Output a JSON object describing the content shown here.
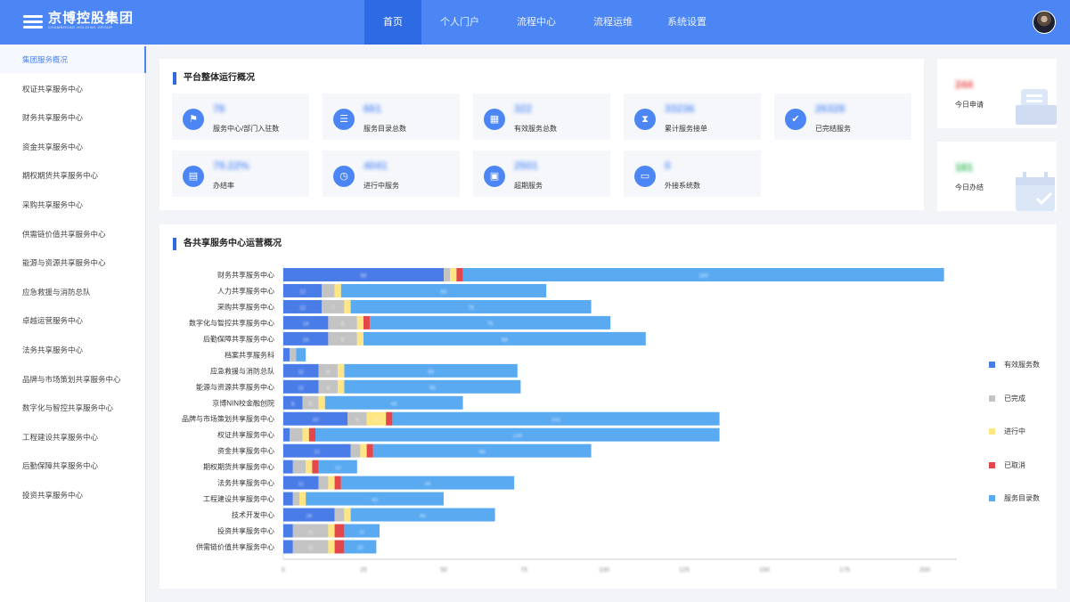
{
  "header": {
    "brand_cn": "京博控股集团",
    "brand_en": "CHAMBROAD HOLDING GROUP",
    "nav": [
      "首页",
      "个人门户",
      "流程中心",
      "流程运维",
      "系统设置"
    ],
    "active_nav": 0
  },
  "sidebar": {
    "items": [
      "集团服务概况",
      "权证共享服务中心",
      "财务共享服务中心",
      "资金共享服务中心",
      "期权期货共享服务中心",
      "采购共享服务中心",
      "供需链价值共享服务中心",
      "能源与资源共享服务中心",
      "应急救援与消防总队",
      "卓越运营服务中心",
      "法务共享服务中心",
      "品牌与市场策划共享服务中心",
      "数字化与智控共享服务中心",
      "工程建设共享服务中心",
      "后勤保障共享服务中心",
      "投资共享服务中心"
    ],
    "active": 0
  },
  "overview": {
    "title": "平台整体运行概况",
    "stats": [
      {
        "value": "78",
        "label": "服务中心/部门入驻数",
        "icon": "flag-icon"
      },
      {
        "value": "661",
        "label": "服务目录总数",
        "icon": "list-icon"
      },
      {
        "value": "322",
        "label": "有效服务总数",
        "icon": "grid-icon"
      },
      {
        "value": "33236",
        "label": "累计服务接单",
        "icon": "hourglass-icon"
      },
      {
        "value": "26328",
        "label": "已完结服务",
        "icon": "clipboard-check-icon"
      },
      {
        "value": "79.22%",
        "label": "办结率",
        "icon": "document-icon"
      },
      {
        "value": "4041",
        "label": "进行中服务",
        "icon": "clock-icon"
      },
      {
        "value": "2501",
        "label": "超期服务",
        "icon": "calendar-icon"
      },
      {
        "value": "0",
        "label": "外接系统数",
        "icon": "monitor-icon"
      }
    ]
  },
  "today": {
    "apply": {
      "value": "244",
      "label": "今日申请",
      "color": "#e8474a"
    },
    "done": {
      "value": "181",
      "label": "今日办结",
      "color": "#31b85a"
    }
  },
  "chart_section": {
    "title": "各共享服务中心运营概况"
  },
  "colors": {
    "primary": "#4c86f4",
    "nav_active": "#2f6ae5",
    "effective": "#4a7ce8",
    "completed": "#c3c3c3",
    "in_progress": "#fde683",
    "cancelled": "#e4474b",
    "catalog": "#5aaaf2"
  },
  "chart_data": {
    "type": "bar",
    "orientation": "horizontal",
    "stacked": true,
    "categories": [
      "财务共享服务中心",
      "人力共享服务中心",
      "采购共享服务中心",
      "数字化与智控共享服务中心",
      "后勤保障共享服务中心",
      "档案共享服务科",
      "应急救援与消防总队",
      "能源与资源共享服务中心",
      "京博NIN校金融创院",
      "品牌与市场策划共享服务中心",
      "权证共享服务中心",
      "资金共享服务中心",
      "期权期货共享服务中心",
      "法务共享服务中心",
      "工程建设共享服务中心",
      "技术开发中心",
      "投资共享服务中心",
      "供需链价值共享服务中心"
    ],
    "series": [
      {
        "name": "有效服务数",
        "values": [
          50,
          12,
          12,
          14,
          14,
          2,
          11,
          11,
          6,
          20,
          2,
          21,
          3,
          11,
          3,
          16,
          3,
          3
        ]
      },
      {
        "name": "已完成",
        "values": [
          2,
          4,
          7,
          9,
          9,
          2,
          6,
          6,
          5,
          6,
          4,
          3,
          4,
          3,
          2,
          3,
          11,
          11
        ]
      },
      {
        "name": "进行中",
        "values": [
          2,
          2,
          2,
          2,
          2,
          0,
          2,
          2,
          2,
          6,
          2,
          2,
          2,
          2,
          2,
          2,
          2,
          2
        ]
      },
      {
        "name": "已取消",
        "values": [
          2,
          0,
          0,
          2,
          0,
          0,
          0,
          0,
          0,
          2,
          2,
          2,
          2,
          2,
          0,
          0,
          3,
          3
        ]
      },
      {
        "name": "服务目录数",
        "values": [
          150,
          64,
          75,
          75,
          88,
          3,
          54,
          55,
          43,
          102,
          126,
          68,
          12,
          54,
          43,
          45,
          11,
          10
        ]
      }
    ],
    "xlim": [
      0,
      210
    ],
    "xticks": [
      0,
      25,
      50,
      75,
      100,
      125,
      150,
      175,
      200
    ],
    "legend_position": "right"
  }
}
